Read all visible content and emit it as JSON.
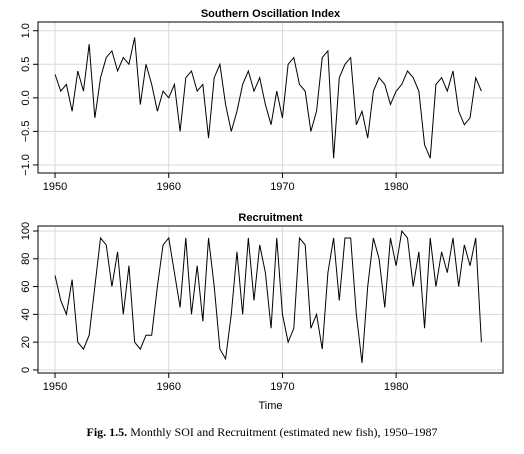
{
  "chart_data": [
    {
      "type": "line",
      "title": "Southern Oscillation Index",
      "color": "#000000",
      "grid": true,
      "x": [
        1950,
        1950.5,
        1951,
        1951.5,
        1952,
        1952.5,
        1953,
        1953.5,
        1954,
        1954.5,
        1955,
        1955.5,
        1956,
        1956.5,
        1957,
        1957.5,
        1958,
        1958.5,
        1959,
        1959.5,
        1960,
        1960.5,
        1961,
        1961.5,
        1962,
        1962.5,
        1963,
        1963.5,
        1964,
        1964.5,
        1965,
        1965.5,
        1966,
        1966.5,
        1967,
        1967.5,
        1968,
        1968.5,
        1969,
        1969.5,
        1970,
        1970.5,
        1971,
        1971.5,
        1972,
        1972.5,
        1973,
        1973.5,
        1974,
        1974.5,
        1975,
        1975.5,
        1976,
        1976.5,
        1977,
        1977.5,
        1978,
        1978.5,
        1979,
        1979.5,
        1980,
        1980.5,
        1981,
        1981.5,
        1982,
        1982.5,
        1983,
        1983.5,
        1984,
        1984.5,
        1985,
        1985.5,
        1986,
        1986.5,
        1987,
        1987.5
      ],
      "values": [
        0.35,
        0.1,
        0.2,
        -0.2,
        0.4,
        0.1,
        0.8,
        -0.3,
        0.3,
        0.6,
        0.7,
        0.4,
        0.6,
        0.5,
        0.9,
        -0.1,
        0.5,
        0.2,
        -0.2,
        0.1,
        0.0,
        0.2,
        -0.5,
        0.3,
        0.4,
        0.1,
        0.2,
        -0.6,
        0.3,
        0.5,
        -0.1,
        -0.5,
        -0.2,
        0.2,
        0.4,
        0.1,
        0.3,
        -0.1,
        -0.4,
        0.1,
        -0.3,
        0.5,
        0.6,
        0.2,
        0.1,
        -0.5,
        -0.2,
        0.6,
        0.7,
        -0.9,
        0.3,
        0.5,
        0.6,
        -0.4,
        -0.2,
        -0.6,
        0.1,
        0.3,
        0.2,
        -0.1,
        0.1,
        0.2,
        0.4,
        0.3,
        0.1,
        -0.7,
        -0.9,
        0.2,
        0.3,
        0.1,
        0.4,
        -0.2,
        -0.4,
        -0.3,
        0.3,
        0.1
      ],
      "xlim": [
        1948.5,
        1989.4
      ],
      "xticks": [
        1950,
        1960,
        1970,
        1980
      ],
      "ylim": [
        -1.12,
        1.13
      ],
      "yticks": [
        {
          "value": 1,
          "label": "1.0"
        },
        0.5,
        {
          "value": 0,
          "label": "0.0"
        },
        {
          "value": -0.5,
          "label": "−0.5"
        },
        {
          "value": -1,
          "label": "−1.0"
        }
      ]
    },
    {
      "type": "line",
      "title": "Recruitment",
      "xlabel": "Time",
      "color": "#000000",
      "grid": true,
      "x": [
        1950,
        1950.5,
        1951,
        1951.5,
        1952,
        1952.5,
        1953,
        1953.5,
        1954,
        1954.5,
        1955,
        1955.5,
        1956,
        1956.5,
        1957,
        1957.5,
        1958,
        1958.5,
        1959,
        1959.5,
        1960,
        1960.5,
        1961,
        1961.5,
        1962,
        1962.5,
        1963,
        1963.5,
        1964,
        1964.5,
        1965,
        1965.5,
        1966,
        1966.5,
        1967,
        1967.5,
        1968,
        1968.5,
        1969,
        1969.5,
        1970,
        1970.5,
        1971,
        1971.5,
        1972,
        1972.5,
        1973,
        1973.5,
        1974,
        1974.5,
        1975,
        1975.5,
        1976,
        1976.5,
        1977,
        1977.5,
        1978,
        1978.5,
        1979,
        1979.5,
        1980,
        1980.5,
        1981,
        1981.5,
        1982,
        1982.5,
        1983,
        1983.5,
        1984,
        1984.5,
        1985,
        1985.5,
        1986,
        1986.5,
        1987,
        1987.5
      ],
      "values": [
        68,
        50,
        40,
        65,
        20,
        15,
        25,
        60,
        95,
        90,
        60,
        85,
        40,
        75,
        20,
        15,
        25,
        25,
        60,
        90,
        95,
        70,
        45,
        95,
        40,
        75,
        35,
        95,
        60,
        15,
        8,
        40,
        85,
        40,
        95,
        50,
        90,
        70,
        30,
        95,
        40,
        20,
        30,
        95,
        90,
        30,
        40,
        15,
        70,
        95,
        50,
        95,
        95,
        40,
        5,
        60,
        95,
        80,
        45,
        95,
        75,
        100,
        95,
        60,
        85,
        30,
        95,
        60,
        85,
        70,
        95,
        60,
        90,
        75,
        95,
        20
      ],
      "xlim": [
        1948.5,
        1989.4
      ],
      "xticks": [
        1950,
        1960,
        1970,
        1980
      ],
      "ylim": [
        -2.2,
        103.6
      ],
      "yticks": [
        0,
        20,
        40,
        60,
        80,
        100
      ]
    }
  ],
  "caption": {
    "label": "Fig. 1.5.",
    "text": "Monthly SOI and Recruitment (estimated new fish), 1950–1987"
  }
}
